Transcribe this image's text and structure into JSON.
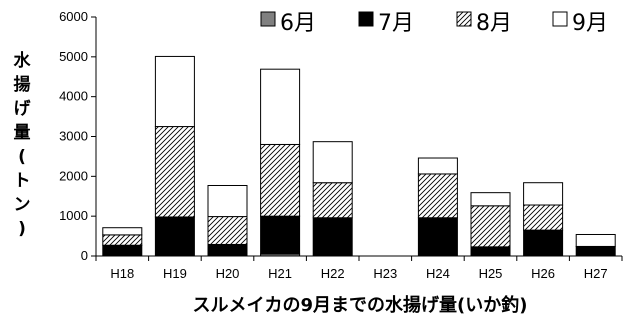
{
  "chart_data": {
    "type": "bar",
    "stacked": true,
    "categories": [
      "H18",
      "H19",
      "H20",
      "H21",
      "H22",
      "H23",
      "H24",
      "H25",
      "H26",
      "H27"
    ],
    "series": [
      {
        "name": "6月",
        "color": "#808080",
        "pattern": "solid",
        "values": [
          0,
          0,
          0,
          50,
          0,
          0,
          0,
          0,
          0,
          0
        ]
      },
      {
        "name": "7月",
        "color": "#000000",
        "pattern": "solid",
        "values": [
          270,
          980,
          290,
          950,
          960,
          0,
          960,
          230,
          650,
          240
        ]
      },
      {
        "name": "8月",
        "color": "#ffffff",
        "pattern": "diagonal-hatch",
        "values": [
          260,
          2270,
          700,
          1800,
          880,
          0,
          1100,
          1030,
          630,
          0
        ]
      },
      {
        "name": "9月",
        "color": "#ffffff",
        "pattern": "none",
        "values": [
          180,
          1760,
          780,
          1890,
          1030,
          0,
          400,
          330,
          560,
          300
        ]
      }
    ],
    "title": "",
    "xlabel": "スルメイカの9月までの水揚げ量(いか釣)",
    "ylabel": "水揚げ量(トン)",
    "ylabel_chars": [
      "水",
      "揚",
      "げ",
      "量",
      "(",
      "ト",
      "ン",
      ")"
    ],
    "ylim": [
      0,
      6000
    ],
    "yticks": [
      0,
      1000,
      2000,
      3000,
      4000,
      5000,
      6000
    ],
    "grid": false,
    "legend_position": "top"
  }
}
